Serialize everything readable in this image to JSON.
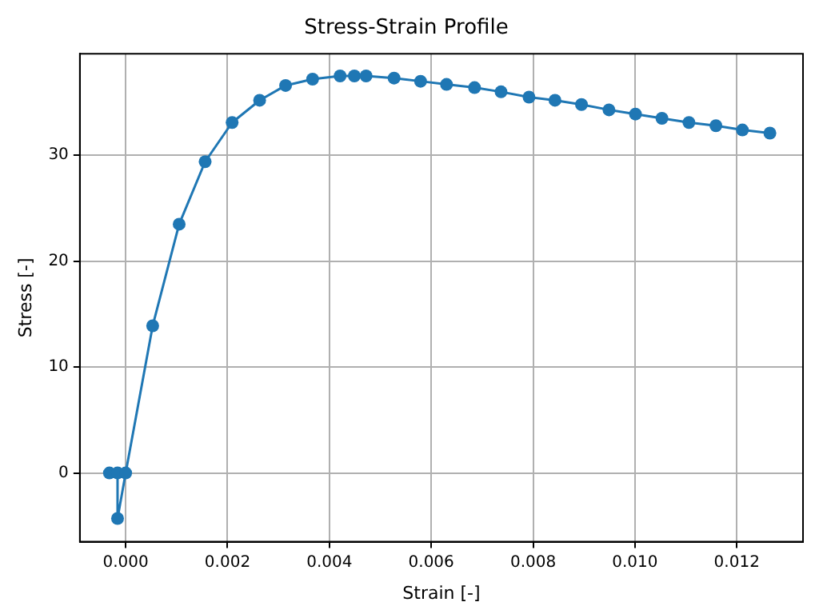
{
  "chart_data": {
    "type": "line",
    "title": "Stress-Strain Profile",
    "xlabel": "Strain [-]",
    "ylabel": "Stress [-]",
    "x": [
      -0.00032,
      -0.00016,
      -0.00016,
      0.0,
      0.00053,
      0.00105,
      0.00156,
      0.00209,
      0.00263,
      0.00314,
      0.00367,
      0.00421,
      0.00449,
      0.00472,
      0.00527,
      0.00579,
      0.0063,
      0.00685,
      0.00737,
      0.00792,
      0.00843,
      0.00895,
      0.00949,
      0.01001,
      0.01053,
      0.01106,
      0.01159,
      0.01211,
      0.01265
    ],
    "series": [
      {
        "color": "#1f77b4",
        "values": [
          0,
          0,
          -4.3,
          0,
          13.9,
          23.5,
          29.4,
          33.1,
          35.2,
          36.6,
          37.2,
          37.5,
          37.5,
          37.5,
          37.3,
          37.0,
          36.7,
          36.4,
          36.0,
          35.5,
          35.2,
          34.8,
          34.3,
          33.9,
          33.5,
          33.1,
          32.8,
          32.4,
          32.1
        ]
      }
    ],
    "xlim": [
      -0.0009,
      0.0133
    ],
    "ylim": [
      -6.5,
      39.6
    ],
    "xticks": [
      {
        "value": 0,
        "label": "0.000"
      },
      {
        "value": 0.002,
        "label": "0.002"
      },
      {
        "value": 0.004,
        "label": "0.004"
      },
      {
        "value": 0.006,
        "label": "0.006"
      },
      {
        "value": 0.008,
        "label": "0.008"
      },
      {
        "value": 0.01,
        "label": "0.010"
      },
      {
        "value": 0.012,
        "label": "0.012"
      }
    ],
    "yticks": [
      0,
      10,
      20,
      30
    ],
    "grid": true,
    "marker": "circle",
    "line_style": "solid"
  }
}
